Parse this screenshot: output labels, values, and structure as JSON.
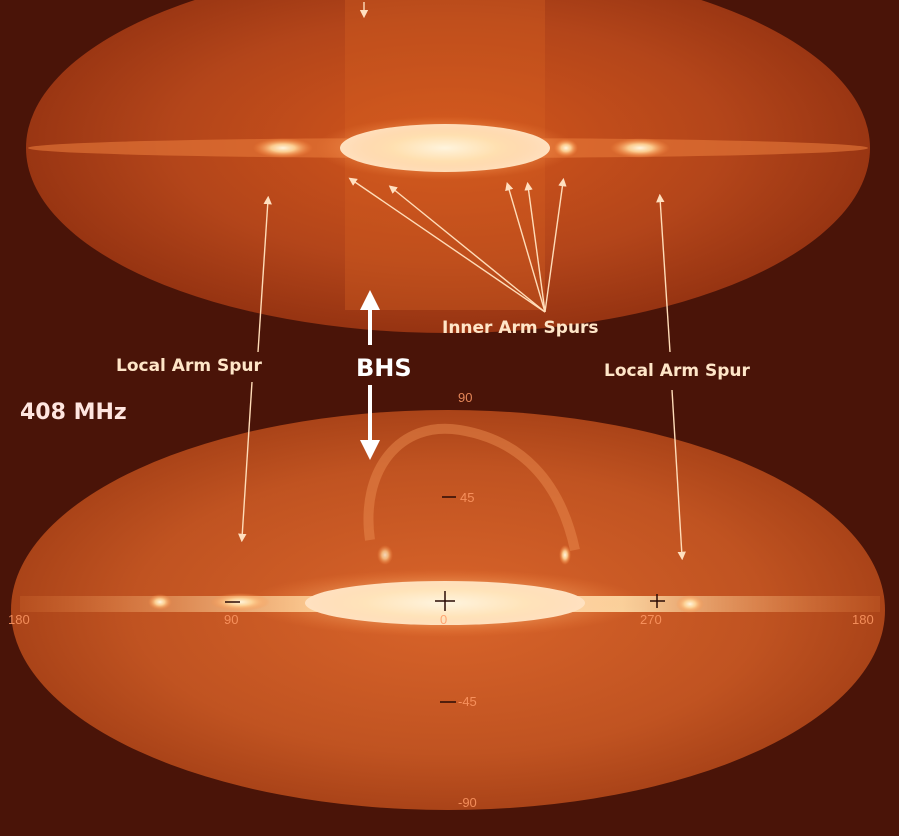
{
  "labels": {
    "inner_arm_spurs": "Inner Arm Spurs",
    "local_arm_spur_left": "Local Arm Spur",
    "local_arm_spur_right": "Local Arm Spur",
    "bhs": "BHS",
    "frequency": "408 MHz"
  },
  "ticks": {
    "lat_top": "90",
    "lat_45": "45",
    "lat_m45": "-45",
    "lat_bottom": "-90",
    "lon_left": "180",
    "lon_90": "90",
    "lon_0": "0",
    "lon_270": "270",
    "lon_right": "180"
  },
  "colors": {
    "background": "#4a1408",
    "sky_dark": "#8a2a0c",
    "sky_mid": "#c4501a",
    "plane_bright": "#ffe9c8",
    "arrow": "#ffd8b0"
  }
}
